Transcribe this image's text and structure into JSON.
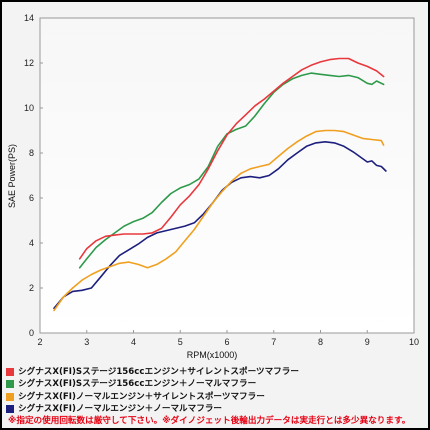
{
  "chart_data": {
    "type": "line",
    "xlabel": "RPM(x1000)",
    "ylabel": "SAE Power(PS)",
    "x_range": [
      2,
      10
    ],
    "y_range": [
      0,
      14
    ],
    "x_ticks": [
      2,
      3,
      4,
      5,
      6,
      7,
      8,
      9,
      10
    ],
    "y_ticks": [
      0,
      2,
      4,
      6,
      8,
      10,
      12,
      14
    ],
    "grid": false,
    "series": [
      {
        "name": "シグナスX(FI)Sステージ156ccエンジン＋サイレントスポーツマフラー",
        "color": "#e8383d",
        "points": [
          [
            2.85,
            3.3
          ],
          [
            3.0,
            3.75
          ],
          [
            3.2,
            4.1
          ],
          [
            3.4,
            4.3
          ],
          [
            3.6,
            4.35
          ],
          [
            3.8,
            4.4
          ],
          [
            4.0,
            4.4
          ],
          [
            4.2,
            4.4
          ],
          [
            4.4,
            4.45
          ],
          [
            4.6,
            4.65
          ],
          [
            4.8,
            5.15
          ],
          [
            5.0,
            5.7
          ],
          [
            5.2,
            6.1
          ],
          [
            5.4,
            6.6
          ],
          [
            5.6,
            7.3
          ],
          [
            5.8,
            8.1
          ],
          [
            6.0,
            8.8
          ],
          [
            6.2,
            9.3
          ],
          [
            6.4,
            9.7
          ],
          [
            6.6,
            10.1
          ],
          [
            6.8,
            10.4
          ],
          [
            7.0,
            10.75
          ],
          [
            7.2,
            11.1
          ],
          [
            7.4,
            11.4
          ],
          [
            7.6,
            11.7
          ],
          [
            7.8,
            11.9
          ],
          [
            8.0,
            12.05
          ],
          [
            8.2,
            12.15
          ],
          [
            8.4,
            12.2
          ],
          [
            8.6,
            12.2
          ],
          [
            8.8,
            12.0
          ],
          [
            9.0,
            11.85
          ],
          [
            9.2,
            11.65
          ],
          [
            9.35,
            11.4
          ]
        ]
      },
      {
        "name": "シグナスX(FI)Sステージ156ccエンジン＋ノーマルマフラー",
        "color": "#2e9a4a",
        "points": [
          [
            2.85,
            2.9
          ],
          [
            3.0,
            3.3
          ],
          [
            3.2,
            3.8
          ],
          [
            3.4,
            4.15
          ],
          [
            3.6,
            4.45
          ],
          [
            3.8,
            4.75
          ],
          [
            4.0,
            4.95
          ],
          [
            4.2,
            5.1
          ],
          [
            4.4,
            5.35
          ],
          [
            4.6,
            5.8
          ],
          [
            4.8,
            6.2
          ],
          [
            5.0,
            6.45
          ],
          [
            5.2,
            6.6
          ],
          [
            5.4,
            6.85
          ],
          [
            5.6,
            7.4
          ],
          [
            5.8,
            8.3
          ],
          [
            6.0,
            8.85
          ],
          [
            6.2,
            9.05
          ],
          [
            6.4,
            9.2
          ],
          [
            6.6,
            9.65
          ],
          [
            6.8,
            10.2
          ],
          [
            7.0,
            10.7
          ],
          [
            7.2,
            11.05
          ],
          [
            7.4,
            11.3
          ],
          [
            7.6,
            11.45
          ],
          [
            7.8,
            11.55
          ],
          [
            8.0,
            11.5
          ],
          [
            8.2,
            11.45
          ],
          [
            8.4,
            11.4
          ],
          [
            8.6,
            11.45
          ],
          [
            8.8,
            11.35
          ],
          [
            9.0,
            11.1
          ],
          [
            9.1,
            11.05
          ],
          [
            9.2,
            11.2
          ],
          [
            9.35,
            11.05
          ]
        ]
      },
      {
        "name": "シグナスX(FI)ノーマルエンジン＋サイレントスポーツマフラー",
        "color": "#f0a020",
        "points": [
          [
            2.3,
            1.0
          ],
          [
            2.5,
            1.6
          ],
          [
            2.7,
            2.0
          ],
          [
            2.9,
            2.35
          ],
          [
            3.1,
            2.6
          ],
          [
            3.3,
            2.8
          ],
          [
            3.5,
            2.95
          ],
          [
            3.7,
            3.1
          ],
          [
            3.9,
            3.15
          ],
          [
            4.1,
            3.05
          ],
          [
            4.3,
            2.9
          ],
          [
            4.5,
            3.05
          ],
          [
            4.7,
            3.3
          ],
          [
            4.9,
            3.6
          ],
          [
            5.1,
            4.1
          ],
          [
            5.3,
            4.6
          ],
          [
            5.5,
            5.2
          ],
          [
            5.7,
            5.8
          ],
          [
            5.9,
            6.3
          ],
          [
            6.1,
            6.75
          ],
          [
            6.3,
            7.1
          ],
          [
            6.5,
            7.3
          ],
          [
            6.7,
            7.4
          ],
          [
            6.9,
            7.5
          ],
          [
            7.1,
            7.85
          ],
          [
            7.3,
            8.2
          ],
          [
            7.5,
            8.5
          ],
          [
            7.7,
            8.75
          ],
          [
            7.9,
            8.95
          ],
          [
            8.1,
            9.0
          ],
          [
            8.3,
            9.0
          ],
          [
            8.5,
            8.95
          ],
          [
            8.7,
            8.8
          ],
          [
            8.9,
            8.65
          ],
          [
            9.1,
            8.6
          ],
          [
            9.3,
            8.55
          ],
          [
            9.35,
            8.35
          ]
        ]
      },
      {
        "name": "シグナスX(FI)ノーマルエンジン＋ノーマルマフラー",
        "color": "#1d1f7e",
        "points": [
          [
            2.3,
            1.1
          ],
          [
            2.5,
            1.6
          ],
          [
            2.7,
            1.85
          ],
          [
            2.9,
            1.9
          ],
          [
            3.1,
            2.0
          ],
          [
            3.3,
            2.5
          ],
          [
            3.5,
            3.0
          ],
          [
            3.7,
            3.45
          ],
          [
            3.9,
            3.7
          ],
          [
            4.1,
            3.95
          ],
          [
            4.3,
            4.25
          ],
          [
            4.5,
            4.45
          ],
          [
            4.7,
            4.55
          ],
          [
            4.9,
            4.65
          ],
          [
            5.1,
            4.75
          ],
          [
            5.3,
            4.9
          ],
          [
            5.5,
            5.3
          ],
          [
            5.7,
            5.8
          ],
          [
            5.9,
            6.35
          ],
          [
            6.1,
            6.7
          ],
          [
            6.3,
            6.9
          ],
          [
            6.5,
            6.95
          ],
          [
            6.7,
            6.9
          ],
          [
            6.9,
            7.0
          ],
          [
            7.1,
            7.3
          ],
          [
            7.3,
            7.7
          ],
          [
            7.5,
            8.0
          ],
          [
            7.7,
            8.3
          ],
          [
            7.9,
            8.45
          ],
          [
            8.1,
            8.5
          ],
          [
            8.3,
            8.45
          ],
          [
            8.5,
            8.3
          ],
          [
            8.7,
            8.05
          ],
          [
            8.9,
            7.75
          ],
          [
            9.0,
            7.6
          ],
          [
            9.1,
            7.65
          ],
          [
            9.2,
            7.45
          ],
          [
            9.3,
            7.4
          ],
          [
            9.4,
            7.2
          ]
        ]
      }
    ]
  },
  "note": "※指定の使用回転数は厳守して下さい。※ダイノジェット後輪出力データは実走行とは多少異なります。"
}
